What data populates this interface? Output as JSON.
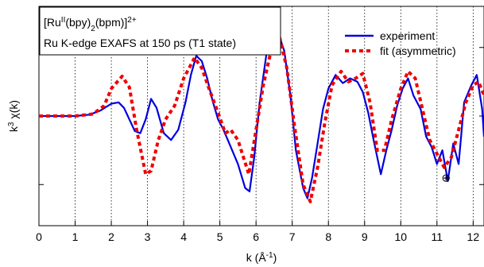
{
  "chart_data": {
    "type": "line",
    "title": "",
    "xlabel_parts": [
      "k (Å",
      "-1",
      ")"
    ],
    "ylabel_parts": [
      "k",
      "3",
      " χ(k)"
    ],
    "info_box": {
      "line1_parts": [
        "[Ru",
        "II",
        "(bpy)",
        "2",
        "(bpm)]",
        "2+"
      ],
      "line2": "Ru K-edge EXAFS at 150 ps (T1 state)"
    },
    "xlim": [
      0,
      12.3
    ],
    "ylim": [
      -1.6,
      1.6
    ],
    "xticks": [
      "0",
      "1",
      "2",
      "3",
      "4",
      "5",
      "6",
      "7",
      "8",
      "9",
      "10",
      "11",
      "12"
    ],
    "grid": "vertical dotted",
    "legend_position": "top-right",
    "series": [
      {
        "name": "experiment",
        "color": "#0000dd",
        "style": "solid",
        "points": [
          [
            0,
            0
          ],
          [
            0.5,
            0
          ],
          [
            1.0,
            0
          ],
          [
            1.4,
            0.02
          ],
          [
            1.7,
            0.08
          ],
          [
            2.0,
            0.18
          ],
          [
            2.2,
            0.2
          ],
          [
            2.35,
            0.12
          ],
          [
            2.5,
            -0.05
          ],
          [
            2.65,
            -0.22
          ],
          [
            2.8,
            -0.25
          ],
          [
            2.95,
            -0.05
          ],
          [
            3.1,
            0.25
          ],
          [
            3.25,
            0.12
          ],
          [
            3.45,
            -0.25
          ],
          [
            3.65,
            -0.35
          ],
          [
            3.85,
            -0.2
          ],
          [
            4.05,
            0.2
          ],
          [
            4.2,
            0.6
          ],
          [
            4.35,
            0.88
          ],
          [
            4.5,
            0.8
          ],
          [
            4.65,
            0.55
          ],
          [
            4.8,
            0.22
          ],
          [
            4.95,
            -0.05
          ],
          [
            5.1,
            -0.2
          ],
          [
            5.3,
            -0.45
          ],
          [
            5.5,
            -0.7
          ],
          [
            5.7,
            -1.05
          ],
          [
            5.82,
            -1.1
          ],
          [
            5.95,
            -0.6
          ],
          [
            6.1,
            0.2
          ],
          [
            6.3,
            0.95
          ],
          [
            6.5,
            1.1
          ],
          [
            6.65,
            1.15
          ],
          [
            6.78,
            0.95
          ],
          [
            6.95,
            0.3
          ],
          [
            7.1,
            -0.5
          ],
          [
            7.3,
            -1.05
          ],
          [
            7.42,
            -1.2
          ],
          [
            7.55,
            -0.9
          ],
          [
            7.7,
            -0.4
          ],
          [
            7.85,
            0.1
          ],
          [
            8.0,
            0.4
          ],
          [
            8.2,
            0.6
          ],
          [
            8.4,
            0.48
          ],
          [
            8.6,
            0.55
          ],
          [
            8.8,
            0.5
          ],
          [
            8.95,
            0.35
          ],
          [
            9.1,
            0.05
          ],
          [
            9.25,
            -0.35
          ],
          [
            9.45,
            -0.85
          ],
          [
            9.6,
            -0.5
          ],
          [
            9.75,
            -0.2
          ],
          [
            9.9,
            0.15
          ],
          [
            10.05,
            0.4
          ],
          [
            10.2,
            0.55
          ],
          [
            10.35,
            0.3
          ],
          [
            10.55,
            0.1
          ],
          [
            10.7,
            -0.3
          ],
          [
            10.85,
            -0.45
          ],
          [
            11.0,
            -0.7
          ],
          [
            11.15,
            -0.5
          ],
          [
            11.3,
            -0.95
          ],
          [
            11.45,
            -0.4
          ],
          [
            11.6,
            -0.7
          ],
          [
            11.75,
            0.2
          ],
          [
            11.95,
            0.45
          ],
          [
            12.1,
            0.6
          ],
          [
            12.25,
            0.1
          ],
          [
            12.3,
            -0.3
          ]
        ]
      },
      {
        "name": "fit (asymmetric)",
        "color": "#ee0000",
        "style": "dashed",
        "points": [
          [
            0,
            0
          ],
          [
            1.0,
            0
          ],
          [
            1.5,
            0.03
          ],
          [
            1.8,
            0.15
          ],
          [
            2.0,
            0.4
          ],
          [
            2.3,
            0.58
          ],
          [
            2.5,
            0.42
          ],
          [
            2.7,
            -0.2
          ],
          [
            2.95,
            -0.85
          ],
          [
            3.1,
            -0.8
          ],
          [
            3.3,
            -0.35
          ],
          [
            3.5,
            -0.05
          ],
          [
            3.75,
            0.15
          ],
          [
            4.0,
            0.55
          ],
          [
            4.3,
            0.85
          ],
          [
            4.5,
            0.7
          ],
          [
            4.7,
            0.4
          ],
          [
            4.95,
            0.05
          ],
          [
            5.15,
            -0.25
          ],
          [
            5.3,
            -0.2
          ],
          [
            5.5,
            -0.35
          ],
          [
            5.8,
            -0.85
          ],
          [
            6.0,
            -0.2
          ],
          [
            6.2,
            0.45
          ],
          [
            6.5,
            1.15
          ],
          [
            6.65,
            1.15
          ],
          [
            6.85,
            0.7
          ],
          [
            7.05,
            -0.1
          ],
          [
            7.3,
            -1.0
          ],
          [
            7.5,
            -1.25
          ],
          [
            7.7,
            -0.75
          ],
          [
            7.9,
            -0.1
          ],
          [
            8.1,
            0.45
          ],
          [
            8.35,
            0.65
          ],
          [
            8.55,
            0.5
          ],
          [
            8.75,
            0.55
          ],
          [
            8.95,
            0.62
          ],
          [
            9.15,
            0.2
          ],
          [
            9.35,
            -0.5
          ],
          [
            9.55,
            -0.5
          ],
          [
            9.75,
            -0.05
          ],
          [
            10.0,
            0.4
          ],
          [
            10.2,
            0.65
          ],
          [
            10.4,
            0.55
          ],
          [
            10.6,
            0.1
          ],
          [
            10.8,
            -0.35
          ],
          [
            11.0,
            -0.55
          ],
          [
            11.2,
            -0.75
          ],
          [
            11.4,
            -0.6
          ],
          [
            11.6,
            -0.2
          ],
          [
            11.8,
            0.2
          ],
          [
            12.0,
            0.45
          ],
          [
            12.15,
            0.5
          ],
          [
            12.3,
            0.3
          ]
        ]
      }
    ],
    "marker": {
      "symbol": "⊕",
      "x": 11.25,
      "y": -0.9
    }
  }
}
